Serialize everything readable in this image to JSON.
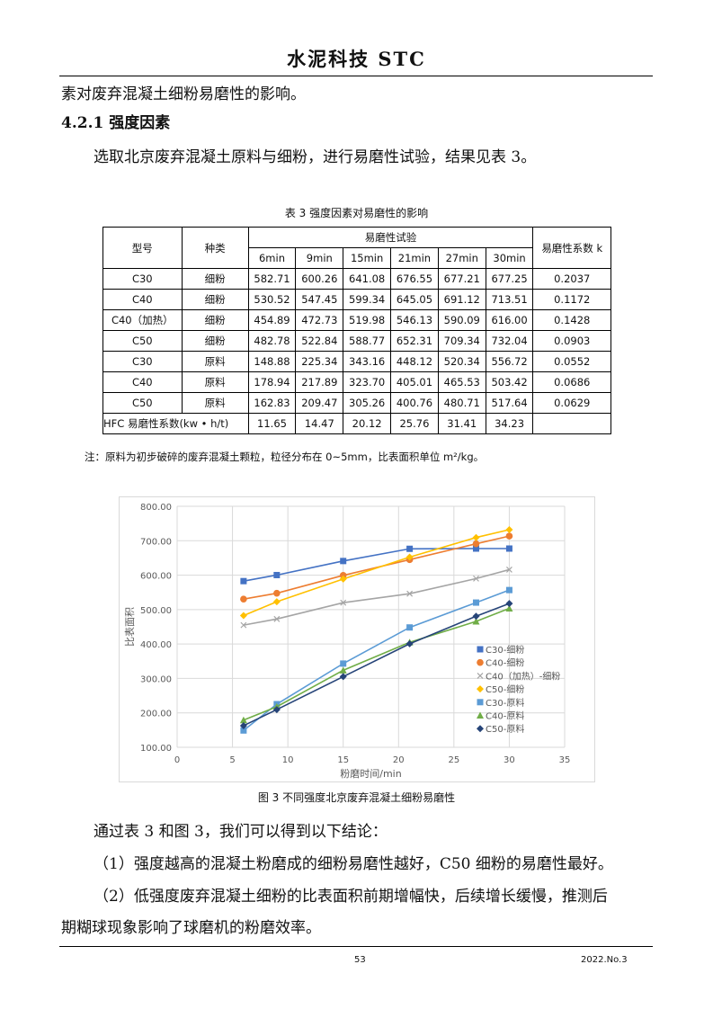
{
  "header": {
    "title": "水泥科技 STC"
  },
  "body": {
    "line0": "素对废弃混凝土细粉易磨性的影响。",
    "section": "4.2.1 强度因素",
    "para1": "选取北京废弃混凝土原料与细粉，进行易磨性试验，结果见表 3。",
    "para2": "通过表 3 和图 3，我们可以得到以下结论：",
    "para3": "（1）强度越高的混凝土粉磨成的细粉易磨性越好，C50 细粉的易磨性最好。",
    "para4a": "（2）低强度废弃混凝土细粉的比表面积前期增幅快，后续增长缓慢，推测后",
    "para4b": "期糊球现象影响了球磨机的粉磨效率。"
  },
  "table": {
    "caption": "表 3   强度因素对易磨性的影响",
    "h_type": "型号",
    "h_kind": "种类",
    "h_test": "易磨性试验",
    "h_k": "易磨性系数 k",
    "times": [
      "6min",
      "9min",
      "15min",
      "21min",
      "27min",
      "30min"
    ],
    "rows": [
      [
        "C30",
        "细粉",
        "582.71",
        "600.26",
        "641.08",
        "676.55",
        "677.21",
        "677.25",
        "0.2037"
      ],
      [
        "C40",
        "细粉",
        "530.52",
        "547.45",
        "599.34",
        "645.05",
        "691.12",
        "713.51",
        "0.1172"
      ],
      [
        "C40（加热）",
        "细粉",
        "454.89",
        "472.73",
        "519.98",
        "546.13",
        "590.09",
        "616.00",
        "0.1428"
      ],
      [
        "C50",
        "细粉",
        "482.78",
        "522.84",
        "588.77",
        "652.31",
        "709.34",
        "732.04",
        "0.0903"
      ],
      [
        "C30",
        "原料",
        "148.88",
        "225.34",
        "343.16",
        "448.12",
        "520.34",
        "556.72",
        "0.0552"
      ],
      [
        "C40",
        "原料",
        "178.94",
        "217.89",
        "323.70",
        "405.01",
        "465.53",
        "503.42",
        "0.0686"
      ],
      [
        "C50",
        "原料",
        "162.83",
        "209.47",
        "305.26",
        "400.76",
        "480.71",
        "517.64",
        "0.0629"
      ]
    ],
    "hfc": {
      "label": "HFC 易磨性系数(kw • h/t)",
      "values": [
        "11.65",
        "14.47",
        "20.12",
        "25.76",
        "31.41",
        "34.23"
      ]
    },
    "note": "注：原料为初步破碎的废弃混凝土颗粒，粒径分布在 0~5mm，比表面积单位 m²/kg。"
  },
  "chart_data": {
    "type": "line",
    "xlabel": "粉磨时间/min",
    "ylabel": "比表面积",
    "xlim": [
      0,
      35
    ],
    "ylim": [
      100,
      800
    ],
    "xticks": [
      "0",
      "5",
      "10",
      "15",
      "20",
      "25",
      "30",
      "35"
    ],
    "yticks": [
      "100.00",
      "200.00",
      "300.00",
      "400.00",
      "500.00",
      "600.00",
      "700.00",
      "800.00"
    ],
    "grid": true,
    "legend": "right",
    "x": [
      6,
      9,
      15,
      21,
      27,
      30
    ],
    "series": [
      {
        "name": "C30-细粉",
        "values": [
          582.71,
          600.26,
          641.08,
          676.55,
          677.21,
          677.25
        ],
        "color": "#4472C4",
        "marker": "square"
      },
      {
        "name": "C40-细粉",
        "values": [
          530.52,
          547.45,
          599.34,
          645.05,
          691.12,
          713.51
        ],
        "color": "#ED7D31",
        "marker": "circle"
      },
      {
        "name": "C40（加热）-细粉",
        "values": [
          454.89,
          472.73,
          519.98,
          546.13,
          590.09,
          616.0
        ],
        "color": "#A5A5A5",
        "marker": "x"
      },
      {
        "name": "C50-细粉",
        "values": [
          482.78,
          522.84,
          588.77,
          652.31,
          709.34,
          732.04
        ],
        "color": "#FFC000",
        "marker": "diamond"
      },
      {
        "name": "C30-原料",
        "values": [
          148.88,
          225.34,
          343.16,
          448.12,
          520.34,
          556.72
        ],
        "color": "#5B9BD5",
        "marker": "square"
      },
      {
        "name": "C40-原料",
        "values": [
          178.94,
          217.89,
          323.7,
          405.01,
          465.53,
          503.42
        ],
        "color": "#70AD47",
        "marker": "triangle"
      },
      {
        "name": "C50-原料",
        "values": [
          162.83,
          209.47,
          305.26,
          400.76,
          480.71,
          517.64
        ],
        "color": "#264478",
        "marker": "diamond"
      }
    ]
  },
  "figure": {
    "caption": "图 3   不同强度北京废弃混凝土细粉易磨性"
  },
  "footer": {
    "page": "53",
    "issue": "2022.No.3"
  }
}
